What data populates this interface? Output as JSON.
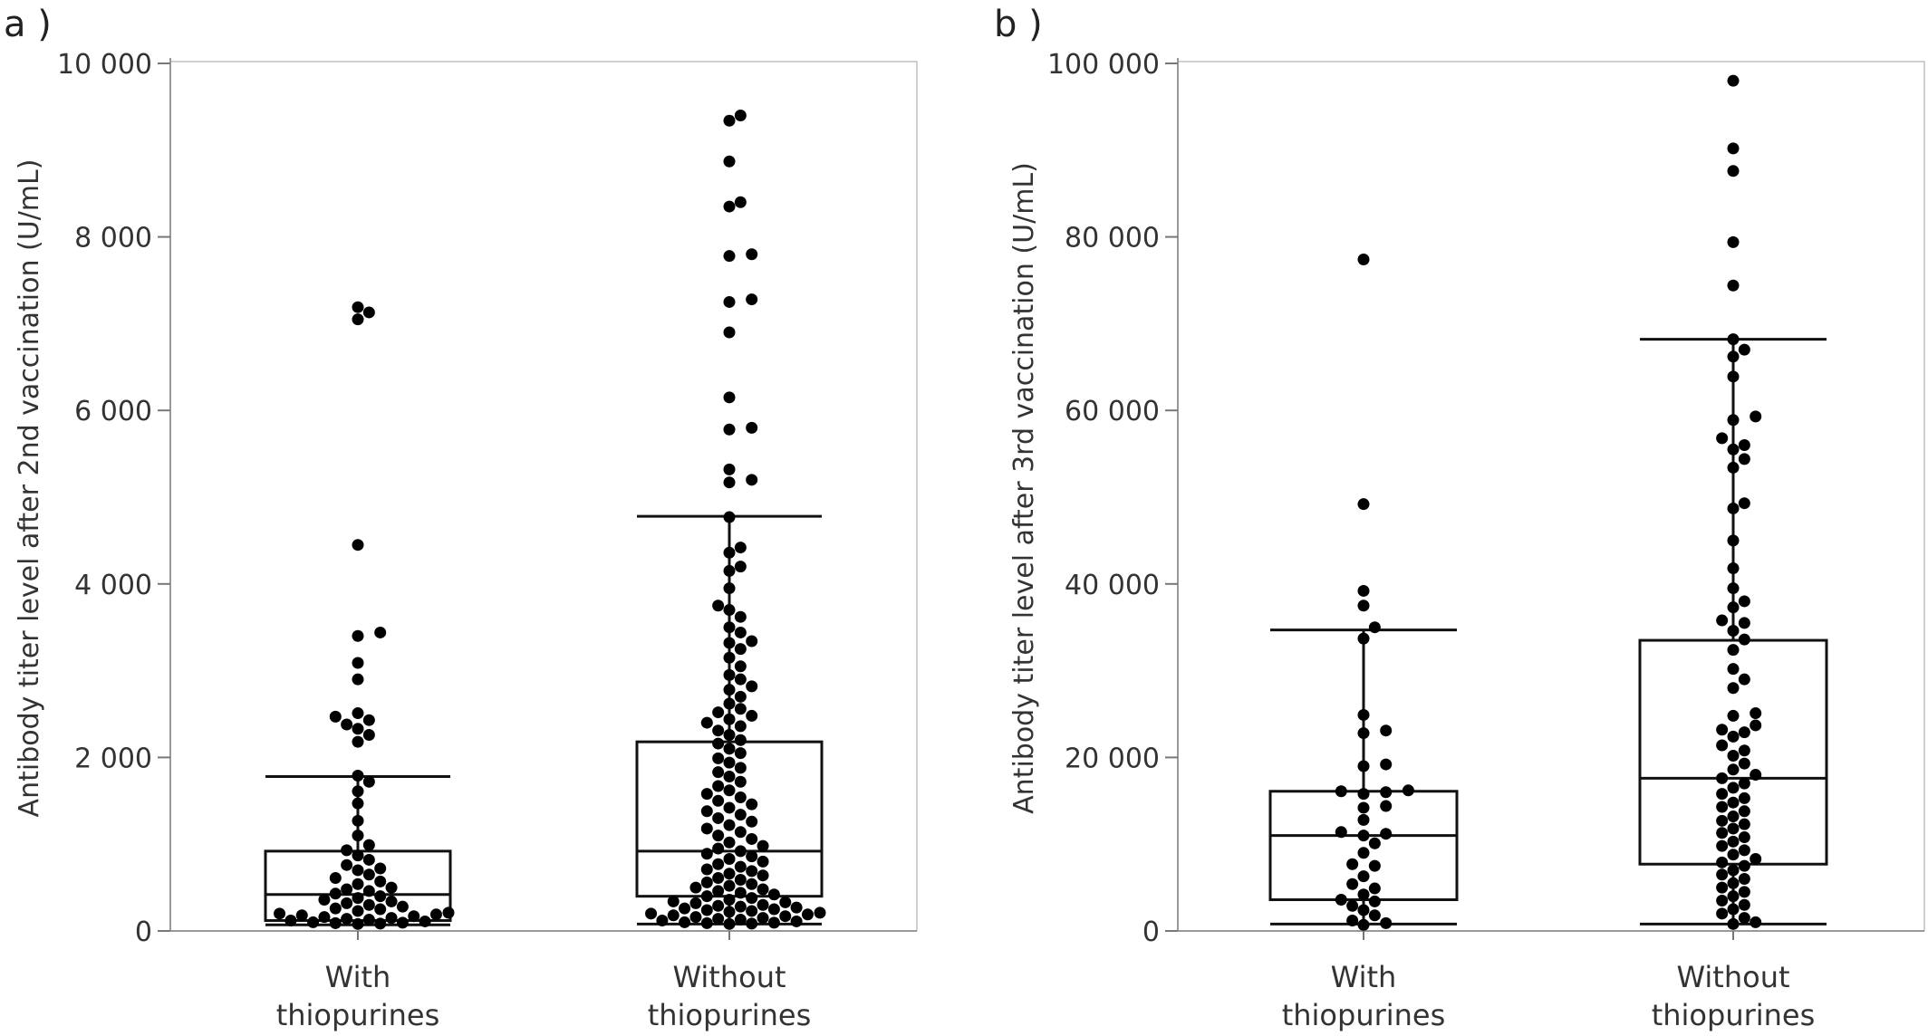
{
  "chart_data": [
    {
      "type": "box-swarm",
      "panel_label": "a )",
      "ylabel": "Antibody titer level after 2nd vaccination (U/mL)",
      "ylim": [
        0,
        10000
      ],
      "yticks": [
        0,
        2000,
        4000,
        6000,
        8000,
        10000
      ],
      "ytick_labels": [
        "0",
        "2 000",
        "4 000",
        "6 000",
        "8 000",
        "10 000"
      ],
      "categories": [
        {
          "line1": "With",
          "line2": "thiopurines"
        },
        {
          "line1": "Without",
          "line2": "thiopurines"
        }
      ],
      "boxes": [
        {
          "q1": 120,
          "median": 420,
          "q3": 920,
          "whisker_low": 70,
          "whisker_high": 1780
        },
        {
          "q1": 400,
          "median": 920,
          "q3": 2180,
          "whisker_low": 80,
          "whisker_high": 4780
        }
      ],
      "points": [
        [
          7190,
          7130,
          7050,
          4450,
          3440,
          3400,
          3090,
          2900,
          2510,
          2470,
          2430,
          2380,
          2330,
          2260,
          2180,
          1790,
          1720,
          1610,
          1470,
          1270,
          1100,
          990,
          930,
          870,
          820,
          760,
          720,
          700,
          650,
          610,
          570,
          540,
          500,
          480,
          460,
          430,
          400,
          380,
          360,
          340,
          320,
          300,
          280,
          260,
          250,
          230,
          210,
          200,
          190,
          180,
          170,
          160,
          150,
          140,
          130,
          120,
          110,
          100,
          95,
          90,
          85,
          80
        ],
        [
          9400,
          9340,
          8870,
          8400,
          8350,
          7800,
          7780,
          7280,
          7250,
          6900,
          6150,
          5800,
          5780,
          5320,
          5200,
          5170,
          4770,
          4420,
          4360,
          4200,
          4150,
          3950,
          3750,
          3700,
          3620,
          3500,
          3440,
          3340,
          3320,
          3250,
          3150,
          3050,
          2950,
          2900,
          2820,
          2780,
          2700,
          2620,
          2560,
          2520,
          2480,
          2440,
          2400,
          2360,
          2310,
          2260,
          2200,
          2160,
          2100,
          2050,
          1990,
          1940,
          1880,
          1830,
          1780,
          1720,
          1670,
          1620,
          1580,
          1540,
          1500,
          1460,
          1420,
          1380,
          1340,
          1300,
          1260,
          1220,
          1180,
          1140,
          1100,
          1060,
          1020,
          980,
          950,
          920,
          890,
          860,
          830,
          800,
          770,
          740,
          710,
          690,
          660,
          640,
          610,
          590,
          560,
          540,
          520,
          500,
          480,
          460,
          440,
          420,
          400,
          380,
          360,
          340,
          330,
          320,
          300,
          290,
          280,
          270,
          260,
          250,
          240,
          230,
          220,
          210,
          200,
          190,
          180,
          170,
          160,
          150,
          140,
          130,
          120,
          110,
          100,
          95,
          90,
          85,
          80
        ]
      ]
    },
    {
      "type": "box-swarm",
      "panel_label": "b )",
      "ylabel": "Antibody titer level after 3rd vaccination (U/mL)",
      "ylim": [
        0,
        100000
      ],
      "yticks": [
        0,
        20000,
        40000,
        60000,
        80000,
        100000
      ],
      "ytick_labels": [
        "0",
        "20 000",
        "40 000",
        "60 000",
        "80 000",
        "100 000"
      ],
      "categories": [
        {
          "line1": "With",
          "line2": "thiopurines"
        },
        {
          "line1": "Without",
          "line2": "thiopurines"
        }
      ],
      "boxes": [
        {
          "q1": 3600,
          "median": 11000,
          "q3": 16100,
          "whisker_low": 800,
          "whisker_high": 34700
        },
        {
          "q1": 7700,
          "median": 17600,
          "q3": 33500,
          "whisker_low": 800,
          "whisker_high": 68200
        }
      ],
      "points": [
        [
          77400,
          49200,
          39200,
          37500,
          35000,
          33700,
          24900,
          23100,
          22800,
          19200,
          19000,
          16200,
          16100,
          16000,
          15800,
          14400,
          14200,
          12800,
          11400,
          11200,
          11000,
          10100,
          9000,
          7700,
          7500,
          6300,
          5400,
          4900,
          4200,
          3600,
          3400,
          2900,
          2400,
          1800,
          1200,
          900,
          700
        ],
        [
          98000,
          90200,
          87600,
          79400,
          74400,
          68200,
          67000,
          66200,
          63900,
          59300,
          58900,
          56800,
          56000,
          55500,
          54400,
          53400,
          49300,
          48700,
          45000,
          41800,
          39500,
          38000,
          37300,
          35800,
          35500,
          34600,
          33600,
          32400,
          30200,
          29000,
          28000,
          25100,
          24800,
          23700,
          23200,
          22900,
          22400,
          21400,
          20800,
          20200,
          19300,
          18600,
          18000,
          17600,
          17000,
          16500,
          15800,
          15300,
          14800,
          14300,
          13800,
          13200,
          12700,
          12300,
          11800,
          11300,
          10800,
          10300,
          9800,
          9300,
          8800,
          8300,
          7900,
          7500,
          7000,
          6500,
          6000,
          5500,
          5000,
          4500,
          4000,
          3500,
          3000,
          2500,
          2000,
          1500,
          1000,
          800
        ]
      ]
    }
  ]
}
